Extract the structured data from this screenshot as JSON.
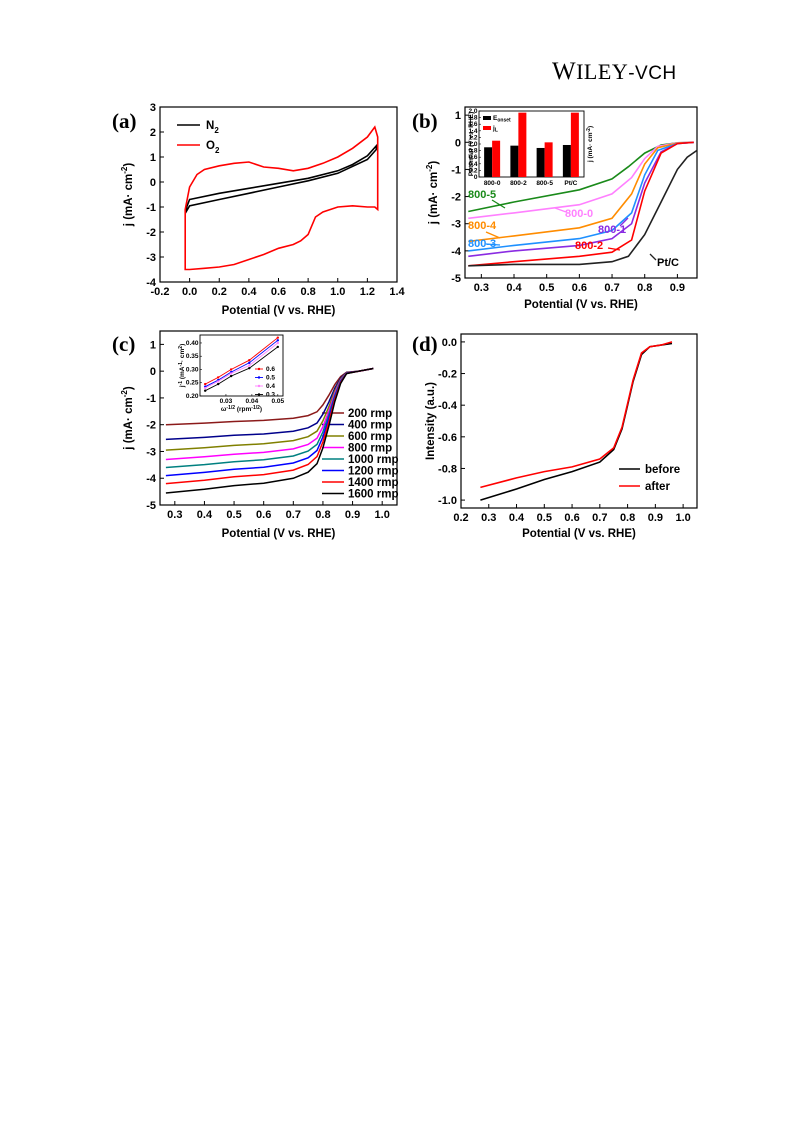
{
  "header": {
    "w": "W",
    "iley": "ILEY",
    "dash": "-",
    "vch": "VCH"
  },
  "chart_data": [
    {
      "panel": "(a)",
      "type": "line",
      "xlabel": "Potential (V vs. RHE)",
      "ylabel": "j (mA· cm",
      "ylabel_sup": "-2",
      "ylabel_close": ")",
      "xlim": [
        -0.2,
        1.4
      ],
      "ylim": [
        -4,
        3
      ],
      "xticks": [
        "-0.2",
        "0.0",
        "0.2",
        "0.4",
        "0.6",
        "0.8",
        "1.0",
        "1.2",
        "1.4"
      ],
      "yticks": [
        "-4",
        "-3",
        "-2",
        "-1",
        "0",
        "1",
        "2",
        "3"
      ],
      "legend_position": "top-left",
      "series": [
        {
          "name": "N",
          "name_sub": "2",
          "color": "#000000",
          "x": [
            0.0,
            0.2,
            0.4,
            0.6,
            0.8,
            1.0,
            1.1,
            1.2,
            1.26,
            1.26,
            1.2,
            1.0,
            0.8,
            0.6,
            0.4,
            0.2,
            0.0,
            -0.02,
            -0.02
          ],
          "y": [
            -0.7,
            -0.45,
            -0.25,
            -0.05,
            0.15,
            0.45,
            0.7,
            1.05,
            1.45,
            1.3,
            0.9,
            0.35,
            0.05,
            -0.2,
            -0.45,
            -0.7,
            -0.95,
            -1.15,
            -1.0
          ]
        },
        {
          "name": "O",
          "name_sub": "2",
          "color": "#ff0000",
          "x": [
            -0.03,
            0.0,
            0.05,
            0.1,
            0.2,
            0.3,
            0.4,
            0.5,
            0.6,
            0.7,
            0.8,
            0.9,
            1.0,
            1.1,
            1.2,
            1.25,
            1.27,
            1.27,
            1.25,
            1.2,
            1.1,
            1.0,
            0.9,
            0.85,
            0.8,
            0.75,
            0.7,
            0.6,
            0.5,
            0.4,
            0.3,
            0.2,
            0.1,
            0.0,
            -0.03
          ],
          "y": [
            -1.1,
            -0.2,
            0.3,
            0.5,
            0.65,
            0.75,
            0.8,
            0.6,
            0.55,
            0.45,
            0.55,
            0.75,
            1.0,
            1.35,
            1.8,
            2.2,
            1.8,
            -1.1,
            -1.0,
            -1.0,
            -0.95,
            -1.0,
            -1.2,
            -1.4,
            -2.1,
            -2.35,
            -2.5,
            -2.65,
            -2.9,
            -3.1,
            -3.3,
            -3.4,
            -3.45,
            -3.5,
            -3.5
          ]
        }
      ]
    },
    {
      "panel": "(b)",
      "type": "line",
      "xlabel": "Potential (V vs. RHE)",
      "ylabel": "j (mA· cm",
      "ylabel_sup": "-2",
      "ylabel_close": ")",
      "xlim": [
        0.25,
        0.96
      ],
      "ylim": [
        -5,
        1.3
      ],
      "xticks": [
        "0.3",
        "0.4",
        "0.5",
        "0.6",
        "0.7",
        "0.8",
        "0.9"
      ],
      "yticks": [
        "-5",
        "-4",
        "-3",
        "-2",
        "-1",
        "0",
        "1"
      ],
      "series": [
        {
          "name": "800-5",
          "color": "#1a8a1a",
          "x": [
            0.26,
            0.4,
            0.6,
            0.7,
            0.75,
            0.8,
            0.85,
            0.9,
            0.95
          ],
          "y": [
            -2.55,
            -2.2,
            -1.75,
            -1.35,
            -0.9,
            -0.4,
            -0.1,
            -0.02,
            0.0
          ]
        },
        {
          "name": "800-0",
          "color": "#ff80ff",
          "x": [
            0.26,
            0.4,
            0.6,
            0.7,
            0.76,
            0.8,
            0.84,
            0.9,
            0.95
          ],
          "y": [
            -2.8,
            -2.6,
            -2.3,
            -1.9,
            -1.3,
            -0.6,
            -0.15,
            -0.02,
            0.0
          ]
        },
        {
          "name": "800-4",
          "color": "#ff8c00",
          "x": [
            0.26,
            0.4,
            0.6,
            0.7,
            0.76,
            0.8,
            0.84,
            0.9,
            0.95
          ],
          "y": [
            -3.65,
            -3.45,
            -3.15,
            -2.8,
            -1.9,
            -0.8,
            -0.2,
            -0.03,
            0.0
          ]
        },
        {
          "name": "800-3",
          "color": "#1e90ff",
          "x": [
            0.26,
            0.4,
            0.6,
            0.7,
            0.76,
            0.8,
            0.84,
            0.9,
            0.95
          ],
          "y": [
            -4.0,
            -3.8,
            -3.55,
            -3.25,
            -2.6,
            -1.2,
            -0.3,
            -0.05,
            0.0
          ]
        },
        {
          "name": "800-1",
          "color": "#8a2be2",
          "x": [
            0.26,
            0.4,
            0.6,
            0.7,
            0.76,
            0.8,
            0.85,
            0.9,
            0.95
          ],
          "y": [
            -4.2,
            -4.0,
            -3.8,
            -3.55,
            -3.0,
            -1.5,
            -0.35,
            -0.05,
            0.0
          ]
        },
        {
          "name": "800-2",
          "color": "#ff0000",
          "x": [
            0.26,
            0.4,
            0.6,
            0.7,
            0.76,
            0.8,
            0.85,
            0.9,
            0.95
          ],
          "y": [
            -4.55,
            -4.4,
            -4.2,
            -4.05,
            -3.6,
            -1.8,
            -0.4,
            -0.05,
            0.0
          ]
        },
        {
          "name": "Pt/C",
          "color": "#222222",
          "x": [
            0.26,
            0.4,
            0.5,
            0.6,
            0.7,
            0.75,
            0.8,
            0.85,
            0.9,
            0.93,
            0.96
          ],
          "y": [
            -4.55,
            -4.5,
            -4.5,
            -4.5,
            -4.4,
            -4.2,
            -3.4,
            -2.2,
            -1.0,
            -0.55,
            -0.3
          ]
        }
      ],
      "inset": {
        "type": "bar",
        "categories": [
          "800-0",
          "800-2",
          "800-5",
          "Pt/C"
        ],
        "ylabel_left": "Potential (V vs. RHE)",
        "ylabel_right": "j (mA· cm",
        "ylabel_right_sup": "-2",
        "ylabel_right_close": ")",
        "yticks_left": [
          "0",
          "0.2",
          "0.4",
          "0.6",
          "0.8",
          "1.0",
          "1.2",
          "1.4",
          "1.6",
          "1.8",
          "2.0"
        ],
        "legend": [
          {
            "label": "E",
            "label_sub": "onset",
            "color": "#000000"
          },
          {
            "label": "j",
            "label_sub": "L",
            "color": "#ff0000"
          }
        ],
        "series": [
          {
            "name": "E",
            "color": "#000000",
            "values": [
              0.9,
              0.95,
              0.88,
              0.97
            ]
          },
          {
            "name": "j",
            "color": "#ff0000",
            "values": [
              1.1,
              1.95,
              1.05,
              1.95
            ]
          }
        ]
      }
    },
    {
      "panel": "(c)",
      "type": "line",
      "xlabel": "Potential (V vs. RHE)",
      "ylabel": "j (mA· cm",
      "ylabel_sup": "-2",
      "ylabel_close": ")",
      "xlim": [
        0.25,
        1.05
      ],
      "ylim": [
        -5,
        1.5
      ],
      "xticks": [
        "0.3",
        "0.4",
        "0.5",
        "0.6",
        "0.7",
        "0.8",
        "0.9",
        "1.0"
      ],
      "yticks": [
        "-5",
        "-4",
        "-3",
        "-2",
        "-1",
        "0",
        "1"
      ],
      "legend_position": "right",
      "series": [
        {
          "name": "200 rmp",
          "color": "#8b1a1a",
          "limit": -2.0
        },
        {
          "name": "400 rmp",
          "color": "#00008b",
          "limit": -2.55
        },
        {
          "name": "600 rmp",
          "color": "#808000",
          "limit": -2.95
        },
        {
          "name": "800 rmp",
          "color": "#ff00ff",
          "limit": -3.3
        },
        {
          "name": "1000 rmp",
          "color": "#008080",
          "limit": -3.6
        },
        {
          "name": "1200 rmp",
          "color": "#0000ff",
          "limit": -3.9
        },
        {
          "name": "1400 rmp",
          "color": "#ff0000",
          "limit": -4.2
        },
        {
          "name": "1600 rmp",
          "color": "#000000",
          "limit": -4.55
        }
      ],
      "inset": {
        "type": "line",
        "xlabel": "ω",
        "xlabel_sup": "-1/2",
        "xlabel_unit": " (rpm",
        "xlabel_unit_sup": "-1/2",
        "xlabel_close": ")",
        "ylabel": "j",
        "ylabel_sup": "-1",
        "ylabel_unit": " (mA",
        "ylabel_unit_sup": "-1",
        "ylabel_unit2": "· cm",
        "ylabel_unit2_sup": "2",
        "ylabel_close": ")",
        "xticks": [
          "0.03",
          "0.04",
          "0.05"
        ],
        "yticks": [
          "0.20",
          "0.25",
          "0.30",
          "0.35",
          "0.40"
        ],
        "series": [
          {
            "name": "0.6",
            "color": "#ff0000",
            "x": [
              0.022,
              0.027,
              0.032,
              0.039,
              0.05
            ],
            "y": [
              0.245,
              0.27,
              0.3,
              0.335,
              0.42
            ]
          },
          {
            "name": "0.5",
            "color": "#0000ff",
            "x": [
              0.022,
              0.027,
              0.032,
              0.039,
              0.05
            ],
            "y": [
              0.235,
              0.26,
              0.29,
              0.325,
              0.41
            ]
          },
          {
            "name": "0.4",
            "color": "#ff80ff",
            "x": [
              0.022,
              0.027,
              0.032,
              0.039,
              0.05
            ],
            "y": [
              0.23,
              0.255,
              0.285,
              0.315,
              0.4
            ]
          },
          {
            "name": "0.3",
            "color": "#000000",
            "x": [
              0.022,
              0.027,
              0.032,
              0.039,
              0.05
            ],
            "y": [
              0.22,
              0.245,
              0.275,
              0.305,
              0.385
            ]
          }
        ]
      }
    },
    {
      "panel": "(d)",
      "type": "line",
      "xlabel": "Potential (V vs. RHE)",
      "ylabel": "Intensity (a.u.)",
      "xlim": [
        0.2,
        1.05
      ],
      "ylim": [
        -1.05,
        0.05
      ],
      "xticks": [
        "0.2",
        "0.3",
        "0.4",
        "0.5",
        "0.6",
        "0.7",
        "0.8",
        "0.9",
        "1.0"
      ],
      "yticks": [
        "-1.0",
        "-0.8",
        "-0.6",
        "-0.4",
        "-0.2",
        "0.0"
      ],
      "legend_position": "bottom-right",
      "series": [
        {
          "name": "before",
          "color": "#000000",
          "x": [
            0.27,
            0.4,
            0.5,
            0.6,
            0.7,
            0.75,
            0.78,
            0.8,
            0.82,
            0.85,
            0.88,
            0.92,
            0.96
          ],
          "y": [
            -1.0,
            -0.93,
            -0.87,
            -0.82,
            -0.76,
            -0.68,
            -0.55,
            -0.4,
            -0.25,
            -0.08,
            -0.03,
            -0.02,
            -0.01
          ]
        },
        {
          "name": "after",
          "color": "#ff0000",
          "x": [
            0.27,
            0.4,
            0.5,
            0.6,
            0.7,
            0.75,
            0.78,
            0.8,
            0.82,
            0.85,
            0.88,
            0.92,
            0.96
          ],
          "y": [
            -0.92,
            -0.86,
            -0.82,
            -0.79,
            -0.74,
            -0.67,
            -0.54,
            -0.39,
            -0.24,
            -0.07,
            -0.03,
            -0.02,
            0.0
          ]
        }
      ]
    }
  ]
}
